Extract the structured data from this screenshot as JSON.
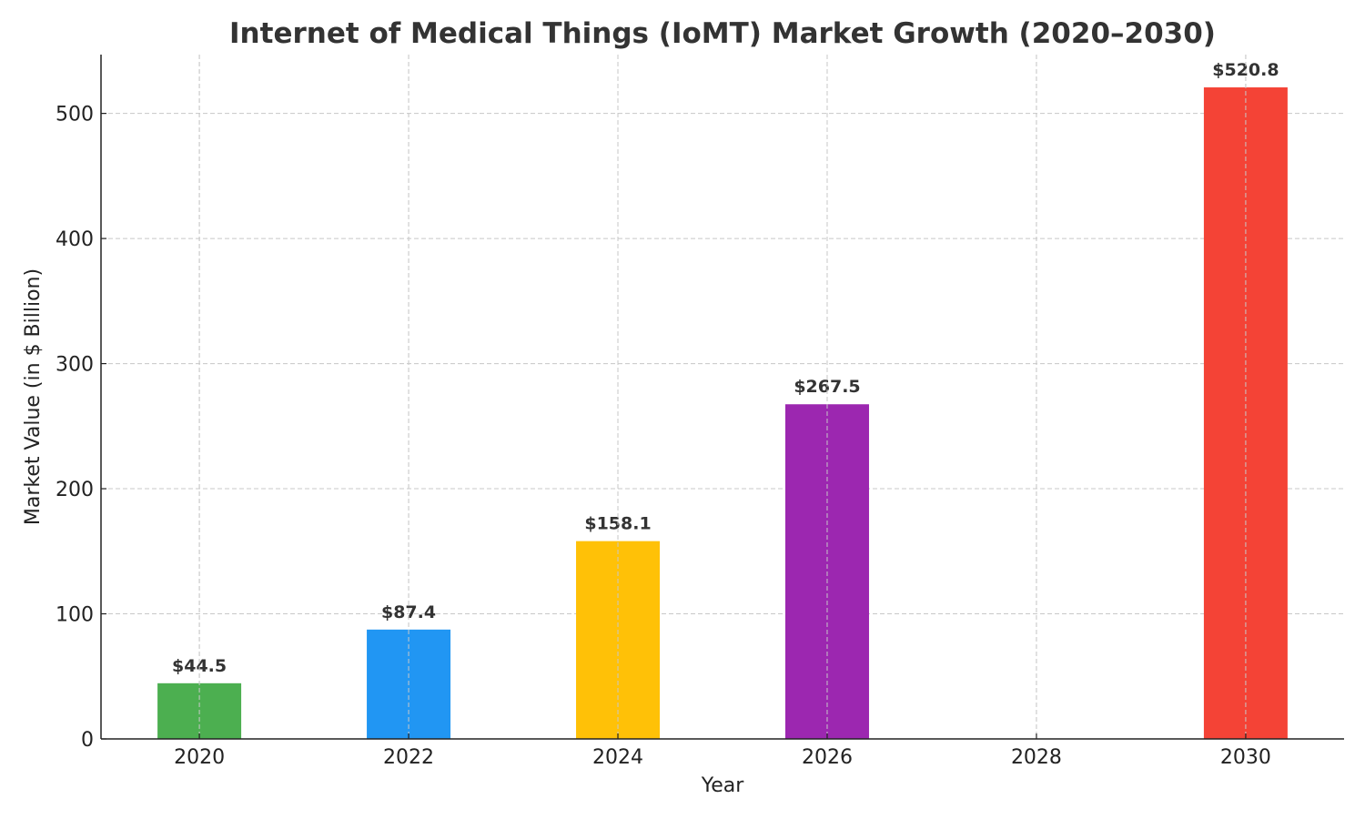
{
  "chart_data": {
    "type": "bar",
    "title": "Internet of Medical Things (IoMT) Market Growth (2020–2030)",
    "xlabel": "Year",
    "ylabel": "Market Value (in $ Billion)",
    "categories": [
      2020,
      2022,
      2024,
      2026,
      2030
    ],
    "values": [
      44.5,
      87.4,
      158.1,
      267.5,
      520.8
    ],
    "data_labels": [
      "$44.5",
      "$87.4",
      "$158.1",
      "$267.5",
      "$520.8"
    ],
    "colors": [
      "#4CAF50",
      "#2196F3",
      "#FFC107",
      "#9C27B0",
      "#F44336"
    ],
    "xticks": [
      "2020",
      "2022",
      "2024",
      "2026",
      "2028",
      "2030"
    ],
    "yticks": [
      "0",
      "100",
      "200",
      "300",
      "400",
      "500"
    ],
    "xlim": [
      2019.06,
      2030.94
    ],
    "ylim": [
      0,
      547
    ],
    "grid": true,
    "legend": "none"
  }
}
